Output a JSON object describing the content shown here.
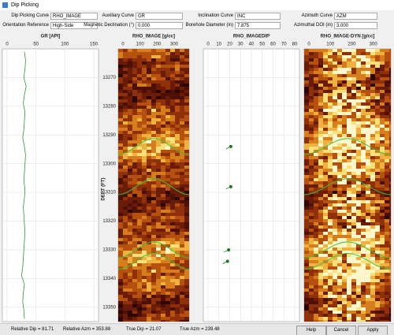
{
  "window": {
    "title": "Dip Picking"
  },
  "controls": [
    {
      "label": "Dip Picking Curve",
      "value": "RHO_IMAGE"
    },
    {
      "label": "Auxiliary Curve",
      "value": "GR"
    },
    {
      "label": "Inclination Curve",
      "value": "INC"
    },
    {
      "label": "Azimuth Curve",
      "value": "AZM"
    },
    {
      "label": "Orientation Reference",
      "value": "High-Side"
    },
    {
      "label": "Magnetic Declination (°)",
      "value": "0.000"
    },
    {
      "label": "Borehole Diameter (in)",
      "value": "7.875"
    },
    {
      "label": "Azimuthal DOI (in)",
      "value": "3.000"
    }
  ],
  "depth_axis": {
    "label": "DEPT (FT)",
    "ylim": [
      13260,
      13355
    ],
    "yticks": [
      13270,
      13280,
      13290,
      13300,
      13310,
      13320,
      13330,
      13340,
      13350
    ]
  },
  "tracks": {
    "gr": {
      "title": "GR [API]",
      "xlim": [
        0,
        150
      ],
      "xticks": [
        0,
        50,
        100,
        150
      ],
      "depth": [
        13261,
        13264,
        13267,
        13270,
        13273,
        13276,
        13279,
        13282,
        13285,
        13288,
        13291,
        13294,
        13297,
        13300,
        13303,
        13306,
        13309,
        13312,
        13315,
        13318,
        13321,
        13324,
        13327,
        13330,
        13333,
        13336,
        13339,
        13342,
        13345,
        13348,
        13351,
        13354
      ],
      "values": [
        30,
        32,
        31,
        29,
        33,
        30,
        28,
        31,
        30,
        29,
        27,
        30,
        32,
        31,
        30,
        29,
        31,
        30,
        28,
        29,
        30,
        31,
        30,
        29,
        28,
        27,
        25,
        30,
        28,
        27,
        29,
        30
      ]
    },
    "image": {
      "title": "RHO_IMAGE [g/cc]",
      "xlim": [
        0,
        360
      ],
      "xticks": [
        0,
        100,
        200,
        300
      ]
    },
    "dip": {
      "title": "RHO_IMAGEDIP",
      "xlim": [
        0,
        80
      ],
      "xticks": [
        0,
        10,
        20,
        30,
        40,
        50,
        60,
        70,
        80
      ],
      "depth": [
        13294,
        13308,
        13330,
        13334
      ],
      "values": [
        21,
        21,
        19,
        18
      ]
    },
    "dyn": {
      "title": "RHO_IMAGE-DYN [g/cc]",
      "xlim": [
        0,
        360
      ],
      "xticks": [
        0,
        100,
        200,
        300
      ]
    }
  },
  "status": [
    "Relative Dip = 81.71",
    "Relative Azm = 353.88",
    "True Dip = 21.07",
    "True Azm = 239.48"
  ],
  "buttons": [
    "Help",
    "Cancel",
    "Apply"
  ]
}
